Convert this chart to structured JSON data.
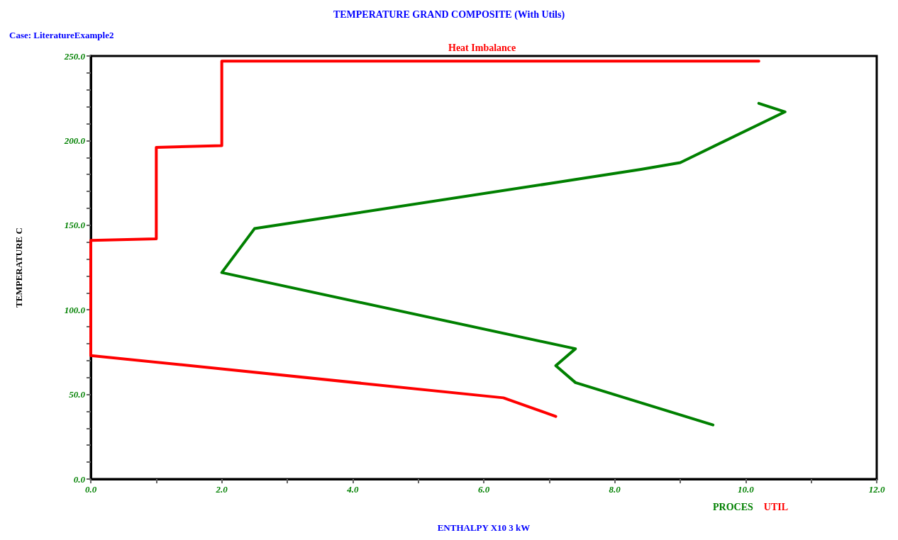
{
  "chart_data": {
    "type": "line",
    "title": "TEMPERATURE GRAND COMPOSITE (With Utils)",
    "subtitle": "Case: LiteratureExample2",
    "xlabel": "ENTHALPY X10 3 kW",
    "ylabel": "TEMPERATURE C",
    "annotations": [
      "Heat Imbalance"
    ],
    "series": [
      {
        "name": "PROCES",
        "color": "#008000",
        "x": [
          10.2,
          10.6,
          9.0,
          8.4,
          7.4,
          2.5,
          2.0,
          7.4,
          7.1,
          7.4,
          9.5
        ],
        "values": [
          222,
          217,
          187,
          183,
          177,
          148,
          122,
          77,
          67,
          57,
          32
        ]
      },
      {
        "name": "UTIL",
        "color": "#ff0000",
        "x": [
          10.2,
          2.0,
          2.0,
          1.0,
          1.0,
          0,
          0,
          6.3,
          7.1
        ],
        "values": [
          247,
          247,
          197,
          196,
          142,
          141,
          73,
          48,
          37
        ]
      }
    ],
    "xlim": [
      0,
      12
    ],
    "xticks": [
      {
        "value": 0,
        "label": "0.0"
      },
      {
        "value": 1,
        "label": null
      },
      {
        "value": 2,
        "label": "2.0"
      },
      {
        "value": 3,
        "label": null
      },
      {
        "value": 4,
        "label": "4.0"
      },
      {
        "value": 5,
        "label": null
      },
      {
        "value": 6,
        "label": "6.0"
      },
      {
        "value": 7,
        "label": null
      },
      {
        "value": 8,
        "label": "8.0"
      },
      {
        "value": 9,
        "label": null
      },
      {
        "value": 10,
        "label": "10.0"
      },
      {
        "value": 11,
        "label": null
      },
      {
        "value": 12,
        "label": "12.0"
      }
    ],
    "ylim": [
      0,
      250
    ],
    "yticks": [
      {
        "value": 0,
        "label": "0.0"
      },
      {
        "value": 10,
        "label": null
      },
      {
        "value": 20,
        "label": null
      },
      {
        "value": 30,
        "label": null
      },
      {
        "value": 40,
        "label": null
      },
      {
        "value": 50,
        "label": "50.0"
      },
      {
        "value": 60,
        "label": null
      },
      {
        "value": 70,
        "label": null
      },
      {
        "value": 80,
        "label": null
      },
      {
        "value": 90,
        "label": null
      },
      {
        "value": 100,
        "label": "100.0"
      },
      {
        "value": 110,
        "label": null
      },
      {
        "value": 120,
        "label": null
      },
      {
        "value": 130,
        "label": null
      },
      {
        "value": 140,
        "label": null
      },
      {
        "value": 150,
        "label": "150.0"
      },
      {
        "value": 160,
        "label": null
      },
      {
        "value": 170,
        "label": null
      },
      {
        "value": 180,
        "label": null
      },
      {
        "value": 190,
        "label": null
      },
      {
        "value": 200,
        "label": "200.0"
      },
      {
        "value": 210,
        "label": null
      },
      {
        "value": 220,
        "label": null
      },
      {
        "value": 230,
        "label": null
      },
      {
        "value": 240,
        "label": null
      },
      {
        "value": 250,
        "label": "250.0"
      }
    ],
    "grid": false,
    "legend": "bottom right",
    "marker": "none",
    "line_style": "solid"
  }
}
